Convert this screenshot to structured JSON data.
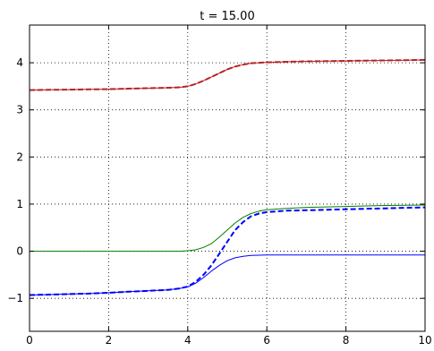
{
  "chart_data": {
    "type": "line",
    "title": "t = 15.00",
    "xlabel": "",
    "ylabel": "",
    "xlim": [
      0,
      10
    ],
    "ylim": [
      -1.7,
      4.8
    ],
    "xticks": [
      0,
      2,
      4,
      6,
      8,
      10
    ],
    "yticks": [
      -1,
      0,
      1,
      2,
      3,
      4
    ],
    "grid": true,
    "grid_style": "dotted",
    "legend": "none",
    "series": [
      {
        "color": "#ff0000",
        "style": "solid",
        "x": [
          0,
          0.5,
          1,
          1.5,
          2,
          2.5,
          3,
          3.5,
          3.8,
          4.0,
          4.2,
          4.4,
          4.6,
          4.8,
          5.0,
          5.2,
          5.4,
          5.6,
          5.8,
          6.0,
          6.5,
          7,
          7.5,
          8,
          8.5,
          9,
          9.5,
          10
        ],
        "y": [
          3.42,
          3.425,
          3.43,
          3.435,
          3.44,
          3.45,
          3.46,
          3.47,
          3.48,
          3.5,
          3.55,
          3.62,
          3.7,
          3.78,
          3.86,
          3.92,
          3.96,
          3.99,
          4.0,
          4.01,
          4.02,
          4.03,
          4.035,
          4.04,
          4.045,
          4.05,
          4.055,
          4.06
        ]
      },
      {
        "color": "#a52a2a",
        "style": "dashed",
        "x": [
          0,
          0.5,
          1,
          1.5,
          2,
          2.5,
          3,
          3.5,
          3.8,
          4.0,
          4.2,
          4.4,
          4.6,
          4.8,
          5.0,
          5.2,
          5.4,
          5.6,
          5.8,
          6.0,
          6.5,
          7,
          7.5,
          8,
          8.5,
          9,
          9.5,
          10
        ],
        "y": [
          3.42,
          3.425,
          3.43,
          3.435,
          3.44,
          3.45,
          3.46,
          3.47,
          3.48,
          3.5,
          3.55,
          3.62,
          3.7,
          3.78,
          3.86,
          3.92,
          3.96,
          3.99,
          4.0,
          4.01,
          4.02,
          4.03,
          4.035,
          4.04,
          4.045,
          4.05,
          4.055,
          4.06
        ]
      },
      {
        "color": "#008000",
        "style": "solid",
        "x": [
          0,
          1,
          2,
          3,
          3.8,
          4.0,
          4.2,
          4.4,
          4.6,
          4.8,
          5.0,
          5.2,
          5.4,
          5.6,
          5.8,
          6.0,
          6.5,
          7,
          7.5,
          8,
          8.5,
          9,
          9.5,
          10
        ],
        "y": [
          0.0,
          0.0,
          0.0,
          0.0,
          0.0,
          0.01,
          0.03,
          0.08,
          0.16,
          0.3,
          0.45,
          0.6,
          0.72,
          0.8,
          0.85,
          0.88,
          0.91,
          0.93,
          0.94,
          0.95,
          0.96,
          0.97,
          0.975,
          0.98
        ]
      },
      {
        "color": "#0000ff",
        "style": "dashed",
        "x": [
          0,
          0.5,
          1,
          1.5,
          2,
          2.5,
          3,
          3.5,
          3.8,
          4.0,
          4.2,
          4.4,
          4.6,
          4.8,
          5.0,
          5.2,
          5.4,
          5.6,
          5.8,
          6.0,
          6.5,
          7,
          7.5,
          8,
          8.5,
          9,
          9.5,
          10
        ],
        "y": [
          -0.93,
          -0.92,
          -0.91,
          -0.9,
          -0.88,
          -0.86,
          -0.84,
          -0.82,
          -0.79,
          -0.75,
          -0.65,
          -0.5,
          -0.3,
          -0.05,
          0.2,
          0.45,
          0.62,
          0.74,
          0.8,
          0.83,
          0.86,
          0.87,
          0.88,
          0.89,
          0.9,
          0.91,
          0.92,
          0.93
        ]
      },
      {
        "color": "#0000ff",
        "style": "solid",
        "x": [
          0,
          0.5,
          1,
          1.5,
          2,
          2.5,
          3,
          3.5,
          3.8,
          4.0,
          4.2,
          4.4,
          4.6,
          4.8,
          5.0,
          5.2,
          5.4,
          5.6,
          5.8,
          6.0,
          6.5,
          7,
          7.5,
          8,
          8.5,
          9,
          9.5,
          10
        ],
        "y": [
          -0.93,
          -0.92,
          -0.91,
          -0.9,
          -0.88,
          -0.86,
          -0.84,
          -0.82,
          -0.79,
          -0.76,
          -0.68,
          -0.56,
          -0.42,
          -0.3,
          -0.2,
          -0.14,
          -0.11,
          -0.09,
          -0.085,
          -0.08,
          -0.08,
          -0.08,
          -0.08,
          -0.08,
          -0.08,
          -0.08,
          -0.08,
          -0.08
        ]
      }
    ]
  }
}
